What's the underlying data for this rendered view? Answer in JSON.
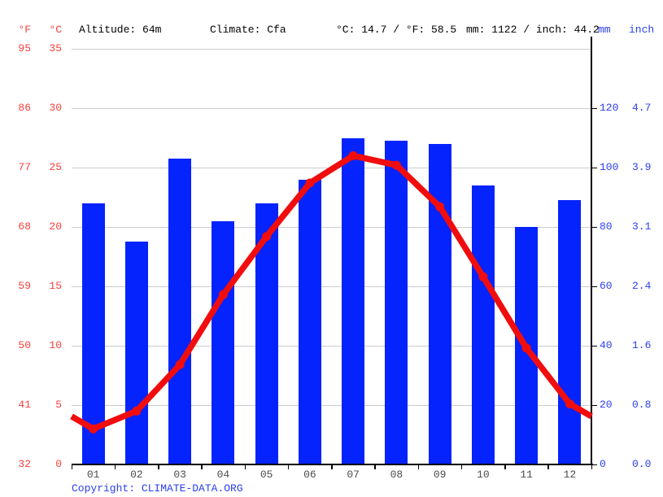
{
  "header": {
    "f_label": "°F",
    "c_label": "°C",
    "altitude": "Altitude: 64m",
    "climate": "Climate: Cfa",
    "temp_summary": "°C: 14.7 / °F: 58.5",
    "precip_summary": "mm: 1122 / inch: 44.2",
    "mm_label": "mm",
    "inch_label": "inch"
  },
  "chart_data": {
    "type": "combo",
    "categories": [
      "01",
      "02",
      "03",
      "04",
      "05",
      "06",
      "07",
      "08",
      "09",
      "10",
      "11",
      "12"
    ],
    "series": [
      {
        "name": "precipitation",
        "type": "bar",
        "unit": "mm",
        "axis": "right",
        "values": [
          88,
          75,
          103,
          82,
          88,
          96,
          110,
          109,
          108,
          94,
          80,
          89
        ]
      },
      {
        "name": "temperature",
        "type": "line",
        "unit": "°C",
        "axis": "left",
        "values": [
          3.0,
          4.5,
          8.4,
          14.3,
          19.2,
          23.7,
          26.0,
          25.2,
          21.7,
          15.8,
          9.8,
          5.1
        ]
      }
    ],
    "title": "",
    "xlabel": "",
    "left_axis": {
      "fahrenheit_ticks": [
        95,
        86,
        77,
        68,
        59,
        50,
        41,
        32
      ],
      "celsius_ticks": [
        35,
        30,
        25,
        20,
        15,
        10,
        5,
        0
      ],
      "range_c": [
        0,
        35
      ]
    },
    "right_axis": {
      "mm_ticks": [
        120,
        100,
        80,
        60,
        40,
        20,
        0
      ],
      "inch_ticks": [
        "4.7",
        "3.9",
        "3.1",
        "2.4",
        "1.6",
        "0.8",
        "0.0"
      ],
      "range_mm": [
        0,
        140
      ]
    },
    "grid": "horizontal-only",
    "legend": "none",
    "annual_mean_c": 14.7,
    "annual_precip_mm": 1122
  },
  "footer": {
    "copyright_label": "Copyright:",
    "copyright_link": "CLIMATE-DATA.ORG"
  },
  "colors": {
    "bar": "#0523fc",
    "line": "#f10d0d",
    "red_label": "#f5423e",
    "blue_label": "#2c40ee",
    "grid": "#cccccc",
    "axis": "#000000",
    "month_label": "#4c4c4c",
    "background": "#ffffff"
  }
}
